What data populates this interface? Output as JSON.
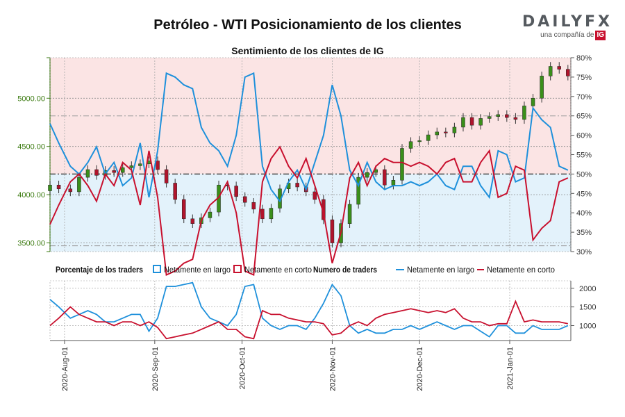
{
  "header": {
    "title": "Petróleo - WTI Posicionamiento de los clientes",
    "subtitle": "Sentimiento de los clientes de IG"
  },
  "brand": {
    "logo": "DAILYFX",
    "sub": "una compañía de",
    "ig": "IG"
  },
  "colors": {
    "long": "#1e90db",
    "short": "#c8102e",
    "price_axis": "#3a7a0f",
    "up_candle": "#3a8f1a",
    "down_candle": "#b0142c",
    "long_zone": "#e3f2fb",
    "short_zone": "#fbe4e4"
  },
  "legend1": {
    "section": "Porcentaje de los traders",
    "long": "Netamente en largo",
    "short": "Netamente en corto"
  },
  "legend2": {
    "section": "Numero de traders",
    "long": "Netamente en largo",
    "short": "Netamente en corto"
  },
  "chart_data": {
    "type": "line",
    "title": "Petróleo - WTI Posicionamiento de los clientes",
    "subtitle": "Sentimiento de los clientes de IG",
    "x_range": [
      "2020-07-27",
      "2021-01-22"
    ],
    "x_ticks": [
      "2020-Aug-01",
      "2020-Sep-01",
      "2020-Oct-01",
      "2020-Nov-01",
      "2020-Dec-01",
      "2021-Jan-01"
    ],
    "price_axis": {
      "ticks": [
        "3500.00",
        "4000.00",
        "4500.00",
        "5000.00"
      ],
      "range": [
        3410,
        5420
      ]
    },
    "pct_axis": {
      "ticks": [
        "30%",
        "35%",
        "40%",
        "45%",
        "50%",
        "55%",
        "60%",
        "65%",
        "70%",
        "75%",
        "80%"
      ],
      "range": [
        30,
        80
      ]
    },
    "count_axis": {
      "ticks": [
        "1000",
        "1500",
        "2000"
      ],
      "range": [
        600,
        2200
      ]
    },
    "dates": [
      "2020-07-27",
      "2020-07-30",
      "2020-08-03",
      "2020-08-06",
      "2020-08-09",
      "2020-08-12",
      "2020-08-15",
      "2020-08-18",
      "2020-08-21",
      "2020-08-24",
      "2020-08-27",
      "2020-08-30",
      "2020-09-02",
      "2020-09-05",
      "2020-09-08",
      "2020-09-11",
      "2020-09-14",
      "2020-09-17",
      "2020-09-20",
      "2020-09-23",
      "2020-09-26",
      "2020-09-29",
      "2020-10-02",
      "2020-10-05",
      "2020-10-08",
      "2020-10-11",
      "2020-10-14",
      "2020-10-17",
      "2020-10-20",
      "2020-10-23",
      "2020-10-26",
      "2020-10-29",
      "2020-11-01",
      "2020-11-04",
      "2020-11-07",
      "2020-11-10",
      "2020-11-13",
      "2020-11-16",
      "2020-11-19",
      "2020-11-22",
      "2020-11-25",
      "2020-11-28",
      "2020-12-01",
      "2020-12-04",
      "2020-12-07",
      "2020-12-10",
      "2020-12-13",
      "2020-12-16",
      "2020-12-19",
      "2020-12-22",
      "2020-12-25",
      "2020-12-28",
      "2020-12-31",
      "2021-01-03",
      "2021-01-06",
      "2021-01-09",
      "2021-01-12",
      "2021-01-15",
      "2021-01-18",
      "2021-01-21"
    ],
    "price_close": [
      4100,
      4060,
      4030,
      4180,
      4260,
      4200,
      4250,
      4230,
      4280,
      4300,
      4320,
      4350,
      4260,
      4120,
      3950,
      3750,
      3700,
      3760,
      3820,
      4100,
      4090,
      3980,
      3920,
      3850,
      3750,
      3860,
      4060,
      4120,
      4080,
      4030,
      3950,
      3740,
      3500,
      3700,
      3900,
      4180,
      4230,
      4260,
      4100,
      4150,
      4480,
      4550,
      4560,
      4620,
      4650,
      4640,
      4700,
      4800,
      4720,
      4790,
      4810,
      4830,
      4800,
      4780,
      4920,
      5000,
      5230,
      5330,
      5300,
      5230
    ],
    "series": [
      {
        "name": "Netamente en largo",
        "pct": [
          63,
          58,
          52,
          50,
          53,
          57,
          50,
          53,
          47,
          49,
          58,
          44,
          56,
          76,
          75,
          73,
          72,
          62,
          58,
          56,
          52,
          60,
          75,
          76,
          52,
          46,
          43,
          48,
          51,
          46,
          53,
          60,
          73,
          65,
          51,
          47,
          53,
          48,
          46,
          47,
          47,
          48,
          47,
          48,
          50,
          47,
          46,
          52,
          52,
          47,
          44,
          56,
          55,
          48,
          49,
          67,
          64,
          62,
          52,
          51
        ],
        "count": [
          1700,
          1500,
          1200,
          1300,
          1400,
          1300,
          1100,
          1100,
          1200,
          1300,
          1300,
          850,
          1200,
          2050,
          2050,
          2100,
          2150,
          1500,
          1200,
          1100,
          1000,
          1300,
          2050,
          2100,
          1200,
          1000,
          900,
          1000,
          1000,
          900,
          1200,
          1600,
          2100,
          1800,
          1000,
          800,
          900,
          800,
          800,
          900,
          900,
          1000,
          900,
          1000,
          1100,
          1000,
          900,
          1000,
          1000,
          850,
          700,
          1000,
          1000,
          800,
          800,
          1000,
          900,
          900,
          900,
          1000
        ]
      },
      {
        "name": "Netamente en corto",
        "pct": [
          37,
          42,
          48,
          50,
          47,
          43,
          50,
          47,
          53,
          51,
          42,
          56,
          44,
          24,
          25,
          27,
          28,
          38,
          42,
          44,
          48,
          40,
          25,
          24,
          48,
          54,
          57,
          52,
          49,
          54,
          47,
          40,
          27,
          35,
          49,
          53,
          47,
          52,
          54,
          53,
          53,
          52,
          53,
          52,
          50,
          53,
          54,
          48,
          48,
          53,
          56,
          44,
          45,
          52,
          51,
          33,
          36,
          38,
          48,
          49
        ],
        "count": [
          1000,
          1200,
          1500,
          1300,
          1200,
          1100,
          1100,
          1000,
          1100,
          1100,
          1000,
          1100,
          950,
          650,
          700,
          750,
          800,
          900,
          1000,
          1100,
          900,
          900,
          700,
          650,
          1400,
          1300,
          1300,
          1200,
          1150,
          1100,
          1100,
          1050,
          750,
          800,
          1000,
          1100,
          1000,
          1200,
          1300,
          1350,
          1400,
          1450,
          1400,
          1350,
          1400,
          1350,
          1450,
          1200,
          1100,
          1100,
          1000,
          1050,
          1050,
          1650,
          1100,
          1150,
          1100,
          1100,
          1100,
          1050
        ]
      }
    ]
  }
}
